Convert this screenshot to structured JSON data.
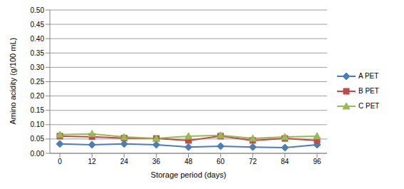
{
  "chart_data": {
    "type": "line",
    "x_label": "Storage period (days)",
    "y_label": "Amino acidity (g/100 mL)",
    "categories": [
      "0",
      "12",
      "24",
      "36",
      "48",
      "60",
      "72",
      "84",
      "96"
    ],
    "ylim": [
      0,
      0.5
    ],
    "yticks": [
      {
        "value": 0,
        "label": "0.00"
      },
      {
        "value": 0.05,
        "label": "0.05"
      },
      {
        "value": 0.1,
        "label": "0.10"
      },
      {
        "value": 0.15,
        "label": "0.15"
      },
      {
        "value": 0.2,
        "label": "0.20"
      },
      {
        "value": 0.25,
        "label": "0.25"
      },
      {
        "value": 0.3,
        "label": "0.30"
      },
      {
        "value": 0.35,
        "label": "0.35"
      },
      {
        "value": 0.4,
        "label": "0.40"
      },
      {
        "value": 0.45,
        "label": "0.45"
      },
      {
        "value": 0.5,
        "label": "0.50"
      }
    ],
    "grid": true,
    "legend": "right",
    "series": [
      {
        "name": "A PET",
        "color": "#4a7ebb",
        "marker": "diamond",
        "values": [
          0.033,
          0.03,
          0.033,
          0.03,
          0.022,
          0.025,
          0.022,
          0.02,
          0.03
        ]
      },
      {
        "name": "B PET",
        "color": "#be4b48",
        "marker": "square",
        "values": [
          0.06,
          0.058,
          0.053,
          0.052,
          0.045,
          0.06,
          0.045,
          0.052,
          0.045
        ]
      },
      {
        "name": "C PET",
        "color": "#98b954",
        "marker": "triangle",
        "values": [
          0.065,
          0.068,
          0.057,
          0.052,
          0.06,
          0.063,
          0.052,
          0.057,
          0.06
        ]
      }
    ]
  }
}
